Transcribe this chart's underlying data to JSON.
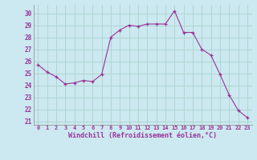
{
  "x": [
    0,
    1,
    2,
    3,
    4,
    5,
    6,
    7,
    8,
    9,
    10,
    11,
    12,
    13,
    14,
    15,
    16,
    17,
    18,
    19,
    20,
    21,
    22,
    23
  ],
  "y": [
    25.7,
    25.1,
    24.7,
    24.1,
    24.2,
    24.4,
    24.3,
    24.9,
    28.0,
    28.6,
    29.0,
    28.9,
    29.1,
    29.1,
    29.1,
    30.2,
    28.4,
    28.4,
    27.0,
    26.5,
    24.9,
    23.2,
    21.9,
    21.3
  ],
  "line_color": "#993399",
  "marker": "+",
  "bg_color": "#cce8f0",
  "grid_color": "#aad4cc",
  "xlabel": "Windchill (Refroidissement éolien,°C)",
  "xlabel_color": "#993399",
  "ylabel_ticks": [
    21,
    22,
    23,
    24,
    25,
    26,
    27,
    28,
    29,
    30
  ],
  "xtick_labels": [
    "0",
    "1",
    "2",
    "3",
    "4",
    "5",
    "6",
    "7",
    "8",
    "9",
    "10",
    "11",
    "12",
    "13",
    "14",
    "15",
    "16",
    "17",
    "18",
    "19",
    "20",
    "21",
    "22",
    "23"
  ],
  "ylim": [
    20.7,
    30.7
  ],
  "xlim": [
    -0.5,
    23.5
  ],
  "font_color": "#993399"
}
